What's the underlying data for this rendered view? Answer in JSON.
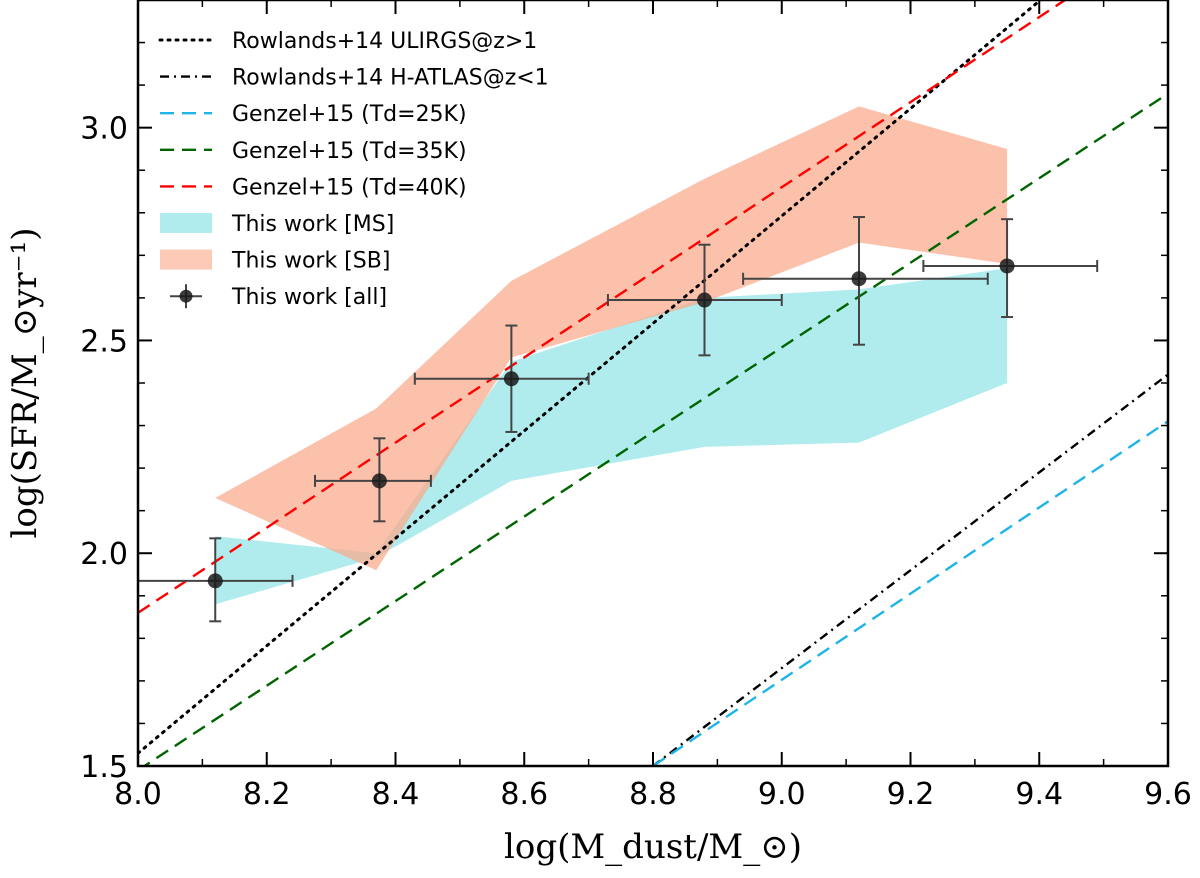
{
  "chart_data": {
    "type": "line",
    "xlabel": "log(M_dust/M_⊙)",
    "ylabel": "log(SFR/M_⊙yr⁻¹)",
    "xlim": [
      8.0,
      9.6
    ],
    "ylim": [
      1.5,
      3.3
    ],
    "xticks": [
      8.0,
      8.2,
      8.4,
      8.6,
      8.8,
      9.0,
      9.2,
      9.4,
      9.6
    ],
    "xtick_labels": [
      "8.0",
      "8.2",
      "8.4",
      "8.6",
      "8.8",
      "9.0",
      "9.2",
      "9.4",
      "9.6"
    ],
    "yticks": [
      1.5,
      2.0,
      2.5,
      3.0
    ],
    "ytick_labels": [
      "1.5",
      "2.0",
      "2.5",
      "3.0"
    ],
    "grid": false,
    "legend_position": "top-left",
    "lines": [
      {
        "name": "Rowlands+14 ULIRGS@z>1",
        "style": "dotted",
        "color": "#000000",
        "x": [
          8.0,
          9.6
        ],
        "y": [
          1.53,
          3.55
        ]
      },
      {
        "name": "Rowlands+14 H-ATLAS@z<1",
        "style": "dashdot",
        "color": "#000000",
        "x": [
          8.8,
          9.6
        ],
        "y": [
          1.5,
          2.42
        ]
      },
      {
        "name": "Genzel+15 (Td=25K)",
        "style": "dashed",
        "color": "#1fb4e8",
        "x": [
          8.8,
          9.6
        ],
        "y": [
          1.5,
          2.31
        ]
      },
      {
        "name": "Genzel+15 (Td=35K)",
        "style": "dashed",
        "color": "#006400",
        "x": [
          8.0,
          9.6
        ],
        "y": [
          1.49,
          3.08
        ]
      },
      {
        "name": "Genzel+15 (Td=40K)",
        "style": "dashed",
        "color": "#ff0000",
        "x": [
          8.0,
          9.6
        ],
        "y": [
          1.86,
          3.46
        ]
      }
    ],
    "bands": [
      {
        "name": "This work [MS]",
        "color": "#7fe0e3",
        "x": [
          8.12,
          8.37,
          8.58,
          8.88,
          9.12,
          9.35
        ],
        "lower": [
          1.88,
          1.99,
          2.17,
          2.25,
          2.26,
          2.4
        ],
        "upper": [
          2.04,
          2.0,
          2.45,
          2.6,
          2.62,
          2.67
        ]
      },
      {
        "name": "This work [SB]",
        "color": "#fba98a",
        "x": [
          8.12,
          8.37,
          8.58,
          8.88,
          9.12,
          9.35
        ],
        "lower": [
          2.13,
          1.96,
          2.46,
          2.59,
          2.73,
          2.68
        ],
        "upper": [
          2.13,
          2.34,
          2.64,
          2.88,
          3.05,
          2.95
        ]
      }
    ],
    "points": {
      "name": "This work [all]",
      "color": "#1a1a1a",
      "x": [
        8.12,
        8.375,
        8.58,
        8.88,
        9.12,
        9.35
      ],
      "y": [
        1.935,
        2.17,
        2.41,
        2.595,
        2.645,
        2.675
      ],
      "xerr_low": [
        0.12,
        0.1,
        0.15,
        0.15,
        0.18,
        0.13
      ],
      "xerr_high": [
        0.12,
        0.08,
        0.12,
        0.12,
        0.2,
        0.14
      ],
      "yerr_low": [
        0.095,
        0.095,
        0.125,
        0.13,
        0.155,
        0.12
      ],
      "yerr_high": [
        0.1,
        0.1,
        0.125,
        0.13,
        0.145,
        0.11
      ]
    }
  }
}
